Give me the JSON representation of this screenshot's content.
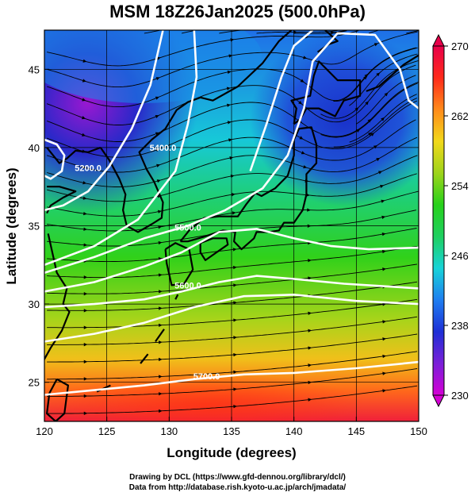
{
  "title": "MSM 18Z26Jan2025 (500.0hPa)",
  "xaxis": {
    "label": "Longitude (degrees)",
    "range": [
      120,
      150
    ],
    "ticks": [
      120,
      125,
      130,
      135,
      140,
      145,
      150
    ]
  },
  "yaxis": {
    "label": "Latitude  (degrees)",
    "range": [
      22.5,
      47.5
    ],
    "ticks": [
      25,
      30,
      35,
      40,
      45
    ]
  },
  "colorbar": {
    "range": [
      230,
      270
    ],
    "ticks": [
      230,
      238,
      246,
      254,
      262,
      270
    ],
    "colors": [
      "#d500d5",
      "#7a1fd8",
      "#1e2fd6",
      "#1f7ef0",
      "#17d3d8",
      "#1ed060",
      "#27d11a",
      "#9ed41a",
      "#f2d81a",
      "#ff8a1a",
      "#ff2a1a",
      "#e8004a"
    ]
  },
  "contours": [
    {
      "label": "5200.0",
      "label_pos": [
        123.5,
        38.5
      ]
    },
    {
      "label": "5400.0",
      "label_pos": [
        129.5,
        39.8
      ]
    },
    {
      "label": "5500.0",
      "label_pos": [
        131.5,
        34.7
      ]
    },
    {
      "label": "5600.0",
      "label_pos": [
        131.5,
        31.0
      ]
    },
    {
      "label": "5700.0",
      "label_pos": [
        133.0,
        25.2
      ]
    }
  ],
  "footer": {
    "line1": "Drawing by DCL (https://www.gfd-dennou.org/library/dcl/)",
    "line2": "Data from http://database.rish.kyoto-u.ac.jp/arch/jmadata/"
  }
}
